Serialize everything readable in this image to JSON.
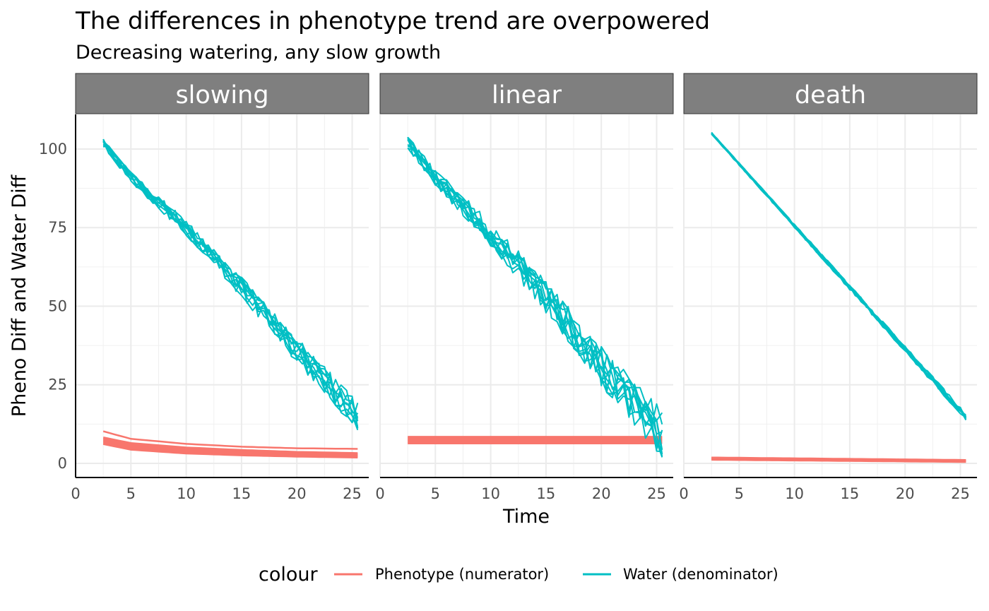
{
  "chart_data": {
    "type": "line",
    "title": "The differences in phenotype trend are overpowered",
    "subtitle": "Decreasing watering, any slow growth",
    "xlabel": "Time",
    "ylabel": "Pheno Diff and Water Diff",
    "xlim": [
      0,
      26.5
    ],
    "ylim": [
      -4.5,
      111
    ],
    "x_ticks": [
      0,
      5,
      10,
      15,
      20,
      25
    ],
    "y_ticks": [
      0,
      25,
      50,
      75,
      100
    ],
    "grid": true,
    "legend": {
      "title": "colour",
      "position": "bottom",
      "entries": [
        {
          "label": "Phenotype (numerator)",
          "color": "#F8766D"
        },
        {
          "label": "Water (denominator)",
          "color": "#00BFC4"
        }
      ]
    },
    "facets": [
      {
        "name": "slowing",
        "series": [
          {
            "name": "Phenotype (numerator)",
            "color": "#F8766D",
            "x": [
              2.5,
              5,
              10,
              15,
              20,
              25.7
            ],
            "values_low": [
              6.2,
              4.4,
              3.2,
              2.6,
              2.2,
              1.9
            ],
            "values_high": [
              8.2,
              6.4,
              5.0,
              4.2,
              3.6,
              3.2
            ],
            "top_line": [
              10.2,
              7.8,
              6.2,
              5.3,
              4.8,
              4.6
            ]
          },
          {
            "name": "Water (denominator)",
            "color": "#00BFC4",
            "x": [
              2.5,
              5,
              10,
              15,
              20,
              25.7
            ],
            "values": [
              102,
              91,
              75,
              56,
              36,
              14
            ],
            "noise": 5
          }
        ]
      },
      {
        "name": "linear",
        "series": [
          {
            "name": "Phenotype (numerator)",
            "color": "#F8766D",
            "x": [
              2.5,
              25.7
            ],
            "values_low": [
              6.4,
              6.4
            ],
            "values_high": [
              8.4,
              8.4
            ]
          },
          {
            "name": "Water (denominator)",
            "color": "#00BFC4",
            "x": [
              2.5,
              5,
              10,
              15,
              20,
              25.7
            ],
            "values": [
              102,
              91,
              73,
              53,
              31,
              9
            ],
            "noise": 8
          }
        ]
      },
      {
        "name": "death",
        "series": [
          {
            "name": "Phenotype (numerator)",
            "color": "#F8766D",
            "x": [
              2.5,
              25.7
            ],
            "values_low": [
              1.2,
              0.5
            ],
            "values_high": [
              1.8,
              1.0
            ]
          },
          {
            "name": "Water (denominator)",
            "color": "#00BFC4",
            "x": [
              2.5,
              25.7
            ],
            "values": [
              105,
              14
            ],
            "noise": 1.2
          }
        ]
      }
    ]
  }
}
